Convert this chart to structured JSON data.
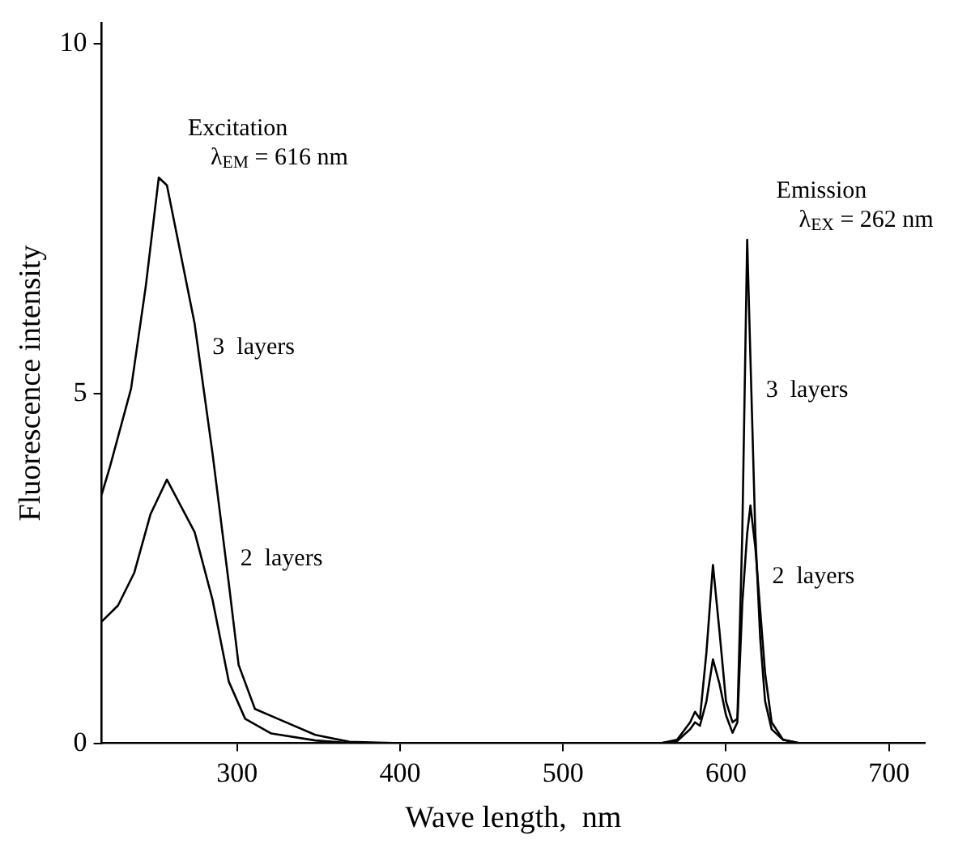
{
  "chart_data": {
    "type": "line",
    "xlabel": "Wave length,  nm",
    "ylabel": "Fluorescence intensity",
    "xlim": [
      217,
      722
    ],
    "ylim": [
      0,
      10.3
    ],
    "xticks": [
      300,
      400,
      500,
      600,
      700
    ],
    "yticks": [
      0,
      5,
      10
    ],
    "grid": false,
    "legend": false,
    "marker": "none",
    "line_style": "solid",
    "series": [
      {
        "name": "3  layers",
        "color": "#000000",
        "x": [
          217,
          222,
          235,
          244,
          252,
          257,
          274,
          285,
          295,
          301,
          311,
          325,
          348,
          369,
          400,
          560,
          570,
          578,
          581,
          584,
          588,
          592,
          596,
          600,
          604,
          607,
          610,
          613,
          615,
          618,
          621,
          624,
          628,
          635,
          645,
          722
        ],
        "values": [
          3.56,
          3.95,
          5.07,
          6.53,
          8.09,
          7.98,
          6.0,
          4.14,
          2.28,
          1.12,
          0.49,
          0.35,
          0.12,
          0.02,
          0,
          0,
          0.05,
          0.3,
          0.45,
          0.35,
          1.3,
          2.55,
          1.6,
          0.6,
          0.3,
          0.35,
          3.0,
          7.2,
          5.5,
          3.0,
          1.5,
          0.6,
          0.2,
          0.05,
          0,
          0
        ]
      },
      {
        "name": "2  layers",
        "color": "#000000",
        "x": [
          217,
          227,
          237,
          247,
          257,
          274,
          285,
          295,
          305,
          321,
          348,
          370,
          400,
          560,
          570,
          578,
          581,
          584,
          588,
          592,
          596,
          600,
          604,
          607,
          610,
          613,
          615,
          618,
          621,
          624,
          628,
          635,
          645,
          722
        ],
        "values": [
          1.74,
          1.97,
          2.44,
          3.28,
          3.77,
          3.02,
          2.05,
          0.88,
          0.35,
          0.14,
          0.04,
          0,
          0,
          0,
          0.03,
          0.2,
          0.3,
          0.25,
          0.6,
          1.2,
          0.85,
          0.4,
          0.15,
          0.3,
          2.0,
          3.0,
          3.4,
          2.8,
          1.9,
          1.0,
          0.3,
          0.05,
          0,
          0
        ]
      }
    ],
    "annotations": [
      "Excitation",
      "λ$_{EM}$ = 616 nm",
      "Emission",
      "λ$_{EX}$ = 262 nm"
    ]
  }
}
